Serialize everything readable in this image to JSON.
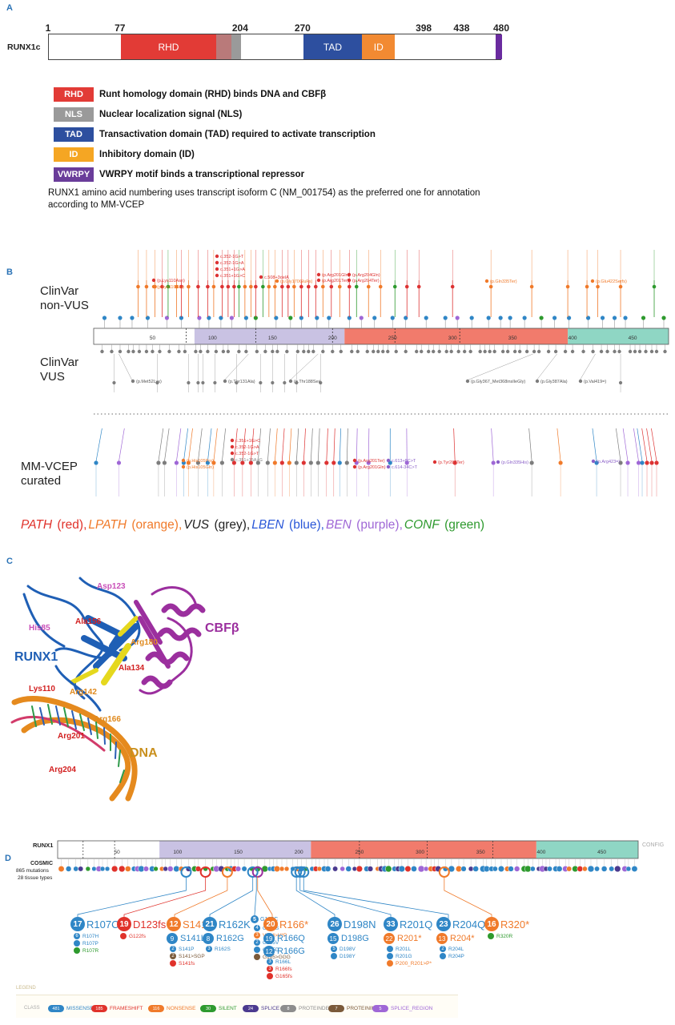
{
  "panels": {
    "a": "A",
    "b": "B",
    "c": "C",
    "d": "D"
  },
  "panel_a": {
    "protein_label": "RUNX1c",
    "positions": [
      {
        "text": "1",
        "at": 1
      },
      {
        "text": "77",
        "at": 77
      },
      {
        "text": "204",
        "at": 204
      },
      {
        "text": "270",
        "at": 270
      },
      {
        "text": "398",
        "at": 398
      },
      {
        "text": "438",
        "at": 438
      },
      {
        "text": "480",
        "at": 480
      }
    ],
    "protein_length": 480,
    "domains": [
      {
        "label": "RHD",
        "start": 77,
        "end": 178,
        "color": "#e23b36"
      },
      {
        "label": "",
        "start": 178,
        "end": 194,
        "color": "#b97a7a"
      },
      {
        "label": "",
        "start": 194,
        "end": 204,
        "color": "#9a9a9a"
      },
      {
        "label": "TAD",
        "start": 270,
        "end": 332,
        "color": "#2d4f9f"
      },
      {
        "label": "ID",
        "start": 332,
        "end": 367,
        "color": "#f28a32"
      },
      {
        "label": "",
        "start": 473,
        "end": 480,
        "color": "#6a2b9f"
      }
    ],
    "legend": [
      {
        "key": "RHD",
        "text": "Runt homology domain (RHD) binds DNA and CBFβ",
        "color": "#e23b36"
      },
      {
        "key": "NLS",
        "text": "Nuclear localization signal (NLS)",
        "color": "#9a9a9a"
      },
      {
        "key": "TAD",
        "text": "Transactivation domain (TAD) required to activate transcription",
        "color": "#2d4f9f"
      },
      {
        "key": "ID",
        "text": "Inhibitory domain (ID)",
        "color": "#f5a623"
      },
      {
        "key": "VWRPY",
        "text": "VWRPY motif binds a transcriptional repressor",
        "color": "#6a3d9a"
      }
    ],
    "note": "RUNX1 amino acid numbering uses transcript isoform C (NM_001754) as the preferred one for annotation according to MM-VCEP"
  },
  "panel_b": {
    "track_clinvar_nonvus": [
      "ClinVar",
      "non-VUS"
    ],
    "track_clinvar_vus": [
      "ClinVar",
      "VUS"
    ],
    "track_mmvcep": [
      "MM-VCEP",
      "curated"
    ],
    "protein_length": 480,
    "segments": [
      {
        "start": 1,
        "end": 85,
        "color": "#ffffff"
      },
      {
        "start": 85,
        "end": 210,
        "color": "#c9c2e3"
      },
      {
        "start": 210,
        "end": 396,
        "color": "#f17b6c"
      },
      {
        "start": 396,
        "end": 480,
        "color": "#8fd6c4"
      }
    ],
    "ticks": [
      "50",
      "100",
      "150",
      "200",
      "250",
      "300",
      "350",
      "400",
      "450"
    ],
    "nonvus_labels": [
      {
        "text": "(p.Lys110Asn)",
        "color": "#d33"
      },
      {
        "text": "(p.Lys110Glu)",
        "color": "#f07a2a"
      },
      {
        "text": "c.352-1G>T",
        "color": "#d33"
      },
      {
        "text": "c.352-1G>A",
        "color": "#d33"
      },
      {
        "text": "c.351+1G>A",
        "color": "#d33"
      },
      {
        "text": "c.351+1G>C",
        "color": "#d33"
      },
      {
        "text": "c.508+3delA",
        "color": "#d33"
      },
      {
        "text": "(p.Gly170GluFs)",
        "color": "#f07a2a"
      },
      {
        "text": "(p.Arg201Gln)",
        "color": "#d33"
      },
      {
        "text": "(p.Arg204Gln)",
        "color": "#d33"
      },
      {
        "text": "(p.Arg201Ter)",
        "color": "#d33"
      },
      {
        "text": "(p.Arg204Ter)",
        "color": "#d33"
      },
      {
        "text": "(p.Gln335Ter)",
        "color": "#f07a2a"
      },
      {
        "text": "(p.Glu422Serfs)",
        "color": "#f07a2a"
      }
    ],
    "vus_labels": [
      {
        "text": "(p.Met52Lys)"
      },
      {
        "text": "(p.Thr131Ala)"
      },
      {
        "text": "(p.Thr188Ser)"
      },
      {
        "text": "(p.Gly367_Met368insIleGly)"
      },
      {
        "text": "(p.Gly387Ala)"
      },
      {
        "text": "(p.Val419=)"
      }
    ],
    "mmvcep_labels": [
      {
        "text": "(p.His105Pro)",
        "color": "#f07a2a"
      },
      {
        "text": "(p.His105Gln)",
        "color": "#f07a2a"
      },
      {
        "text": "c.351+1G>C",
        "color": "#d33"
      },
      {
        "text": "c.352-1G>A",
        "color": "#d33"
      },
      {
        "text": "c.352-1G>T",
        "color": "#d33"
      },
      {
        "text": "c.351+15A>G",
        "color": "#888"
      },
      {
        "text": "(p.Arg201Ter)",
        "color": "#d33"
      },
      {
        "text": "(p.Arg201Gln)",
        "color": "#d33"
      },
      {
        "text": "c.613+8C>T",
        "color": "#8a5fc8"
      },
      {
        "text": "c.614-34C>T",
        "color": "#8a5fc8"
      },
      {
        "text": "(p.Tyr287Ter)",
        "color": "#d33"
      },
      {
        "text": "(p.Gln335His)",
        "color": "#8a5fc8"
      },
      {
        "text": "(p.Arg423=)",
        "color": "#8a5fc8"
      }
    ],
    "classes": [
      {
        "abbr": "PATH",
        "name": "(red)",
        "color": "#e0322b"
      },
      {
        "abbr": "LPATH",
        "name": "(orange)",
        "color": "#f07a2a"
      },
      {
        "abbr": "VUS",
        "name": "(grey)",
        "color": "#222222"
      },
      {
        "abbr": "LBEN",
        "name": "(blue)",
        "color": "#2a57d8"
      },
      {
        "abbr": "BEN",
        "name": "(purple)",
        "color": "#9f67d6"
      },
      {
        "abbr": "CONF",
        "name": "(green)",
        "color": "#2e9a2e"
      }
    ]
  },
  "panel_c": {
    "labels": [
      {
        "text": "Asp123",
        "color": "#c94fb8"
      },
      {
        "text": "His85",
        "color": "#c94fb8"
      },
      {
        "text": "Ala156",
        "color": "#d21f1f"
      },
      {
        "text": "Arg180",
        "color": "#e08a1e"
      },
      {
        "text": "Ala134",
        "color": "#d21f1f"
      },
      {
        "text": "Lys110",
        "color": "#d21f1f"
      },
      {
        "text": "Arg142",
        "color": "#e08a1e"
      },
      {
        "text": "Arg166",
        "color": "#e08a1e"
      },
      {
        "text": "Arg201",
        "color": "#d21f1f"
      },
      {
        "text": "Arg204",
        "color": "#d21f1f"
      }
    ],
    "runx1": "RUNX1",
    "cbfb": "CBFβ",
    "dna": "DNA"
  },
  "panel_d": {
    "protein_label": "RUNX1",
    "config": "CONFIG",
    "source": "COSMIC",
    "mutations": "865 mutations",
    "tissues": "28 tissue types",
    "ticks": [
      "50",
      "100",
      "150",
      "200",
      "250",
      "300",
      "350",
      "400",
      "450"
    ],
    "hotspots": [
      {
        "count": "17",
        "label": "R107C",
        "color": "#2f86c6",
        "subs": [
          {
            "count": "6",
            "label": "R107H",
            "color": "#2f86c6"
          },
          {
            "count": "",
            "label": "R107P",
            "color": "#2f86c6"
          },
          {
            "count": "",
            "label": "R107R",
            "color": "#2e9a2e"
          }
        ]
      },
      {
        "count": "19",
        "label": "D123fs",
        "color": "#e0322b",
        "subs": [
          {
            "count": "",
            "label": "G122fs",
            "color": "#e0322b"
          }
        ]
      },
      {
        "count": "12",
        "label": "S141*",
        "color": "#f07a2a",
        "subs": [
          {
            "count": "9",
            "label": "S141L",
            "color": "#2f86c6"
          },
          {
            "count": "2",
            "label": "S141P",
            "color": "#2f86c6"
          },
          {
            "count": "2",
            "label": "S141>SGP",
            "color": "#7b5a3a"
          },
          {
            "count": "",
            "label": "S141fs",
            "color": "#e0322b"
          }
        ]
      },
      {
        "count": "21",
        "label": "R162K",
        "color": "#2f86c6",
        "subs": [
          {
            "count": "8",
            "label": "R162G",
            "color": "#2f86c6"
          },
          {
            "count": "3",
            "label": "R162S",
            "color": "#2f86c6"
          }
        ]
      },
      {
        "count": "5",
        "label": "G165C",
        "color": "#2f86c6",
        "subs": [
          {
            "count": "4",
            "label": "G165S",
            "color": "#2f86c6"
          },
          {
            "count": "3",
            "label": "V164>V*P",
            "color": "#f07a2a"
          },
          {
            "count": "2",
            "label": "G165V",
            "color": "#2f86c6"
          },
          {
            "count": "",
            "label": "G165D",
            "color": "#2f86c6"
          },
          {
            "count": "",
            "label": "G165>GGG",
            "color": "#7b5a3a"
          }
        ]
      },
      {
        "count": "20",
        "label": "R166*",
        "color": "#f07a2a",
        "subs": [
          {
            "count": "19",
            "label": "R166Q",
            "color": "#2f86c6"
          },
          {
            "count": "12",
            "label": "R166G",
            "color": "#2f86c6"
          },
          {
            "count": "3",
            "label": "R166L",
            "color": "#2f86c6"
          },
          {
            "count": "3",
            "label": "R166fs",
            "color": "#e0322b"
          },
          {
            "count": "",
            "label": "G165fs",
            "color": "#e0322b"
          }
        ]
      },
      {
        "count": "26",
        "label": "D198N",
        "color": "#2f86c6",
        "subs": [
          {
            "count": "15",
            "label": "D198G",
            "color": "#2f86c6"
          },
          {
            "count": "5",
            "label": "D198V",
            "color": "#2f86c6"
          },
          {
            "count": "",
            "label": "D198Y",
            "color": "#2f86c6"
          }
        ]
      },
      {
        "count": "33",
        "label": "R201Q",
        "color": "#2f86c6",
        "subs": [
          {
            "count": "22",
            "label": "R201*",
            "color": "#f07a2a"
          },
          {
            "count": "",
            "label": "R201L",
            "color": "#2f86c6"
          },
          {
            "count": "",
            "label": "R201G",
            "color": "#2f86c6"
          },
          {
            "count": "",
            "label": "P200_R201>P*",
            "color": "#f07a2a"
          }
        ]
      },
      {
        "count": "23",
        "label": "R204Q",
        "color": "#2f86c6",
        "subs": [
          {
            "count": "13",
            "label": "R204*",
            "color": "#f07a2a"
          },
          {
            "count": "2",
            "label": "R204L",
            "color": "#2f86c6"
          },
          {
            "count": "",
            "label": "R204P",
            "color": "#2f86c6"
          }
        ]
      },
      {
        "count": "16",
        "label": "R320*",
        "color": "#f07a2a",
        "subs": [
          {
            "count": "",
            "label": "R320R",
            "color": "#2e9a2e"
          }
        ]
      }
    ],
    "legend_title": "LEGEND",
    "class_label": "CLASS",
    "class_items": [
      {
        "count": "481",
        "label": "MISSENSE",
        "color": "#2f86c6"
      },
      {
        "count": "185",
        "label": "FRAMESHIFT",
        "color": "#e0322b"
      },
      {
        "count": "116",
        "label": "NONSENSE",
        "color": "#f07a2a"
      },
      {
        "count": "30",
        "label": "SILENT",
        "color": "#2e9a2e"
      },
      {
        "count": "24",
        "label": "SPLICE",
        "color": "#4b3a8f"
      },
      {
        "count": "8",
        "label": "PROTEINDEL",
        "color": "#8d8d8d"
      },
      {
        "count": "7",
        "label": "PROTEININS",
        "color": "#7b5a3a"
      },
      {
        "count": "5",
        "label": "SPLICE_REGION",
        "color": "#9f67d6"
      }
    ]
  }
}
